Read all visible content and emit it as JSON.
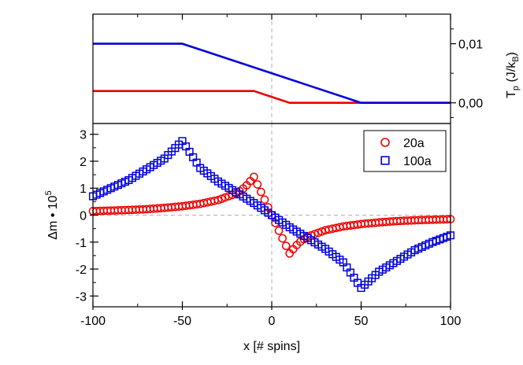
{
  "chart_data": [
    {
      "type": "line",
      "panel": "top",
      "x": [
        -100,
        -50,
        -10,
        10,
        50,
        100
      ],
      "series": [
        {
          "name": "20a",
          "color": "#ee0000",
          "x": [
            -100,
            -10,
            10,
            100
          ],
          "values": [
            0.002,
            0.002,
            0.0,
            0.0
          ]
        },
        {
          "name": "100a",
          "color": "#0000dd",
          "x": [
            -100,
            -50,
            50,
            100
          ],
          "values": [
            0.01,
            0.01,
            0.0,
            0.0
          ]
        }
      ],
      "ylabel": "T",
      "ylabel_sub1": "p",
      "ylabel_mid": " (J/k",
      "ylabel_sub2": "B",
      "ylabel_end": ")",
      "yticks": [
        {
          "value": 0.0,
          "label": "0,00"
        },
        {
          "value": 0.01,
          "label": "0,01"
        }
      ],
      "xlim": [
        -100,
        100
      ],
      "ylim": [
        -0.0035,
        0.015
      ],
      "y_axis_side": "right",
      "grid": false,
      "guide_lines": {
        "x": 0
      }
    },
    {
      "type": "scatter",
      "panel": "bottom",
      "xlabel": "x [# spins]",
      "ylabel": "Δm • 10",
      "ylabel_sup": "5",
      "xlim": [
        -100,
        100
      ],
      "ylim": [
        -3.4,
        3.4
      ],
      "xticks": [
        {
          "value": -100,
          "label": "-100"
        },
        {
          "value": -50,
          "label": "-50"
        },
        {
          "value": 0,
          "label": "0"
        },
        {
          "value": 50,
          "label": "50"
        },
        {
          "value": 100,
          "label": "100"
        }
      ],
      "yticks": [
        {
          "value": 3,
          "label": "3"
        },
        {
          "value": 2,
          "label": "2"
        },
        {
          "value": 1,
          "label": "1"
        },
        {
          "value": 0,
          "label": "0"
        },
        {
          "value": -1,
          "label": "-1"
        },
        {
          "value": -2,
          "label": "-2"
        },
        {
          "value": -3,
          "label": "-3"
        }
      ],
      "legend": {
        "placement": "top-right",
        "entries": [
          "20a",
          "100a"
        ]
      },
      "grid": false,
      "guide_lines": {
        "x": 0,
        "y": 0
      },
      "series": [
        {
          "name": "20a",
          "marker": "circle",
          "color": "#ee0000",
          "x": [
            -100,
            -90,
            -80,
            -70,
            -60,
            -50,
            -40,
            -30,
            -20,
            -15,
            -10,
            -5,
            0,
            5,
            10,
            15,
            20,
            30,
            40,
            50,
            60,
            70,
            80,
            90,
            100
          ],
          "values": [
            0.15,
            0.17,
            0.19,
            0.22,
            0.27,
            0.33,
            0.42,
            0.56,
            0.8,
            1.03,
            1.42,
            0.72,
            0.0,
            -0.72,
            -1.42,
            -1.03,
            -0.8,
            -0.56,
            -0.42,
            -0.33,
            -0.27,
            -0.22,
            -0.19,
            -0.17,
            -0.15
          ]
        },
        {
          "name": "100a",
          "marker": "square",
          "color": "#0000dd",
          "x": [
            -100,
            -90,
            -80,
            -70,
            -60,
            -50,
            -40,
            -30,
            -20,
            -10,
            0,
            10,
            20,
            30,
            40,
            50,
            60,
            70,
            80,
            90,
            100
          ],
          "values": [
            0.7,
            1.0,
            1.3,
            1.7,
            2.1,
            2.75,
            1.75,
            1.25,
            0.85,
            0.45,
            0.0,
            -0.45,
            -0.85,
            -1.25,
            -1.75,
            -2.7,
            -2.1,
            -1.7,
            -1.3,
            -1.0,
            -0.75
          ]
        }
      ]
    }
  ]
}
